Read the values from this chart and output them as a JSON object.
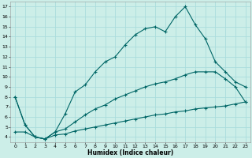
{
  "title": "",
  "xlabel": "Humidex (Indice chaleur)",
  "bg_color": "#cceee8",
  "grid_color": "#aadddd",
  "line_color": "#006666",
  "xlim": [
    -0.5,
    23.5
  ],
  "ylim": [
    3.5,
    17.5
  ],
  "xticks": [
    0,
    1,
    2,
    3,
    4,
    5,
    6,
    7,
    8,
    9,
    10,
    11,
    12,
    13,
    14,
    15,
    16,
    17,
    18,
    19,
    20,
    21,
    22,
    23
  ],
  "yticks": [
    4,
    5,
    6,
    7,
    8,
    9,
    10,
    11,
    12,
    13,
    14,
    15,
    16,
    17
  ],
  "line1_x": [
    0,
    1,
    2,
    3,
    4,
    5,
    6,
    7,
    8,
    9,
    10,
    11,
    12,
    13,
    14,
    15,
    16,
    17,
    18,
    19,
    20,
    21,
    22,
    23
  ],
  "line1_y": [
    8.0,
    5.2,
    4.0,
    3.8,
    4.5,
    6.3,
    8.5,
    9.2,
    10.5,
    11.5,
    12.0,
    13.2,
    14.2,
    14.8,
    15.0,
    14.5,
    16.0,
    17.0,
    15.2,
    13.8,
    11.5,
    10.5,
    9.5,
    9.0
  ],
  "line2_x": [
    0,
    1,
    2,
    3,
    4,
    5,
    6,
    7,
    8,
    9,
    10,
    11,
    12,
    13,
    14,
    15,
    16,
    17,
    18,
    19,
    20,
    21,
    22,
    23
  ],
  "line2_y": [
    8.0,
    5.2,
    4.0,
    3.8,
    4.5,
    4.8,
    5.5,
    6.2,
    6.8,
    7.2,
    7.8,
    8.2,
    8.6,
    9.0,
    9.3,
    9.5,
    9.8,
    10.2,
    10.5,
    10.5,
    10.5,
    9.8,
    9.0,
    7.5
  ],
  "line3_x": [
    0,
    1,
    2,
    3,
    4,
    5,
    6,
    7,
    8,
    9,
    10,
    11,
    12,
    13,
    14,
    15,
    16,
    17,
    18,
    19,
    20,
    21,
    22,
    23
  ],
  "line3_y": [
    4.5,
    4.5,
    4.0,
    3.8,
    4.2,
    4.3,
    4.6,
    4.8,
    5.0,
    5.2,
    5.4,
    5.6,
    5.8,
    6.0,
    6.2,
    6.3,
    6.5,
    6.6,
    6.8,
    6.9,
    7.0,
    7.1,
    7.3,
    7.5
  ]
}
